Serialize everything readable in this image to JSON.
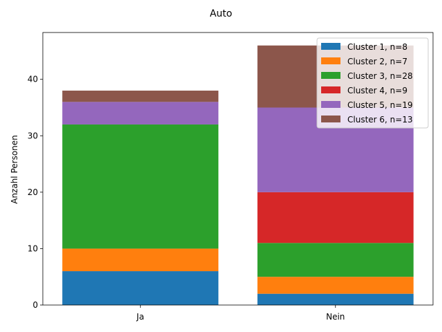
{
  "chart_data": {
    "type": "bar",
    "stacked": true,
    "title": "Auto",
    "xlabel": "",
    "ylabel": "Anzahl Personen",
    "categories": [
      "Ja",
      "Nein"
    ],
    "ylim": [
      0,
      48.3
    ],
    "yticks": [
      0,
      10,
      20,
      30,
      40
    ],
    "grid": false,
    "legend_position": "top-right",
    "series": [
      {
        "name": "Cluster 1, n=8",
        "color": "#1f77b4",
        "values": [
          6,
          2
        ]
      },
      {
        "name": "Cluster 2, n=7",
        "color": "#ff7f0e",
        "values": [
          4,
          3
        ]
      },
      {
        "name": "Cluster 3, n=28",
        "color": "#2ca02c",
        "values": [
          22,
          6
        ]
      },
      {
        "name": "Cluster 4, n=9",
        "color": "#d62728",
        "values": [
          0,
          9
        ]
      },
      {
        "name": "Cluster 5, n=19",
        "color": "#9467bd",
        "values": [
          4,
          15
        ]
      },
      {
        "name": "Cluster 6, n=13",
        "color": "#8c564b",
        "values": [
          2,
          11
        ]
      }
    ]
  }
}
